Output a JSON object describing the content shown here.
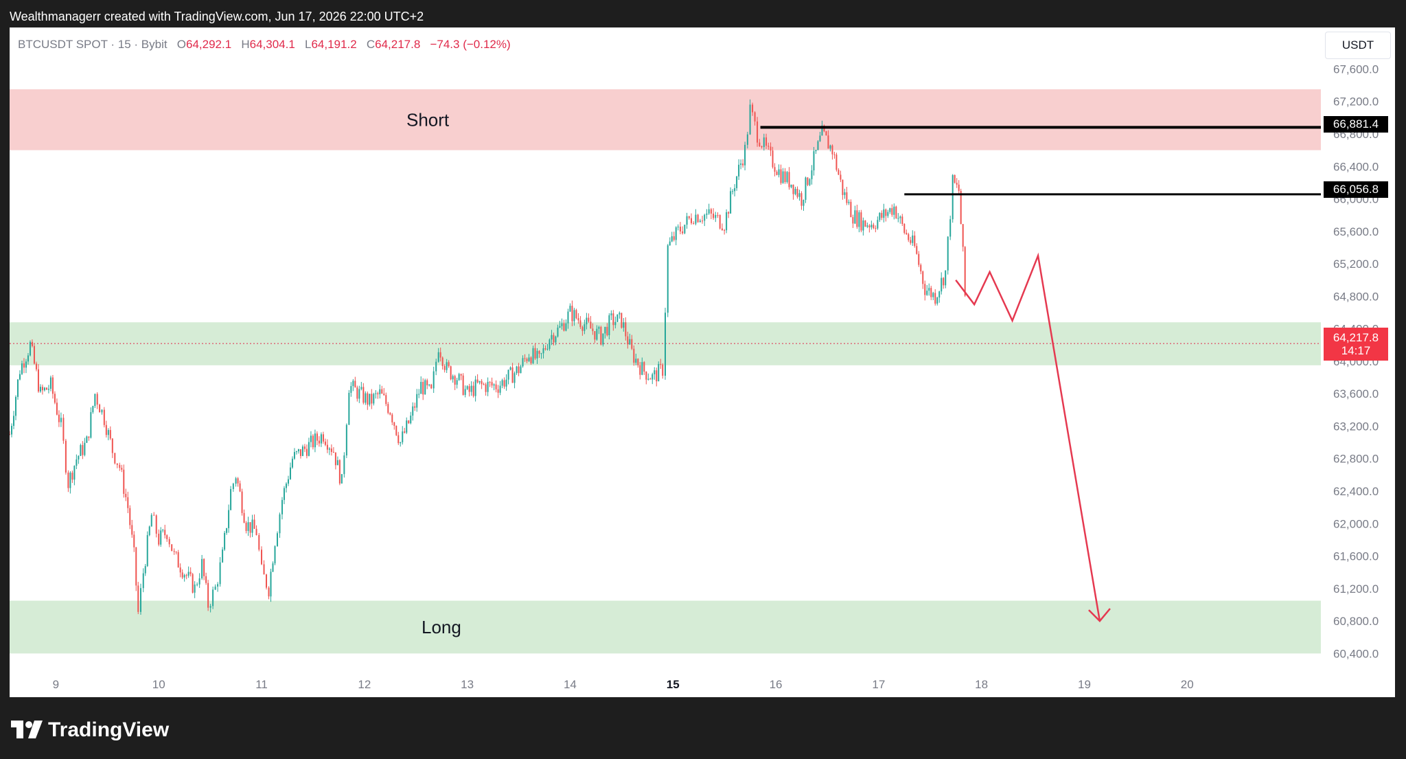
{
  "header": {
    "attribution": "Wealthmanagerr created with TradingView.com, Jun 17, 2026 22:00 UTC+2"
  },
  "symbol": {
    "name": "BTCUSDT SPOT · 15 · Bybit",
    "open_label": "O",
    "open": "64,292.1",
    "high_label": "H",
    "high": "64,304.1",
    "low_label": "L",
    "low": "64,191.2",
    "close_label": "C",
    "close": "64,217.8",
    "change": "−74.3 (−0.12%)"
  },
  "unit": "USDT",
  "price_tags": {
    "level_1": "66,881.4",
    "level_2": "66,056.8",
    "current": "64,217.8",
    "countdown": "14:17"
  },
  "footer": {
    "brand": "TradingView"
  },
  "colors": {
    "up": "#26a69a",
    "down": "#ef5350",
    "short_zone": "#f8cfcf",
    "long_zone": "#d6ecd6",
    "arrow": "#e53950",
    "tag_current": "#f23645"
  },
  "chart_data": {
    "type": "candlestick",
    "symbol": "BTCUSDT",
    "timeframe": "15",
    "exchange": "Bybit",
    "x_ticks": [
      "9",
      "10",
      "11",
      "12",
      "13",
      "14",
      "15",
      "16",
      "17",
      "18",
      "19",
      "20"
    ],
    "y_ticks": [
      67600,
      67200,
      66800,
      66400,
      66000,
      65600,
      65200,
      64800,
      64400,
      64000,
      63600,
      63200,
      62800,
      62400,
      62000,
      61600,
      61200,
      60800,
      60400
    ],
    "ylim": [
      60200,
      67900
    ],
    "xlim": [
      8.55,
      21.3
    ],
    "path_points": [
      [
        8.55,
        63.1
      ],
      [
        8.65,
        63.9
      ],
      [
        8.75,
        64.2
      ],
      [
        8.85,
        63.6
      ],
      [
        8.95,
        63.7
      ],
      [
        9.05,
        63.2
      ],
      [
        9.12,
        62.5
      ],
      [
        9.2,
        62.8
      ],
      [
        9.3,
        63.0
      ],
      [
        9.38,
        63.6
      ],
      [
        9.47,
        63.3
      ],
      [
        9.55,
        62.9
      ],
      [
        9.62,
        62.7
      ],
      [
        9.7,
        62.2
      ],
      [
        9.76,
        61.6
      ],
      [
        9.8,
        60.9
      ],
      [
        9.85,
        61.4
      ],
      [
        9.93,
        62.1
      ],
      [
        10.0,
        61.8
      ],
      [
        10.08,
        61.9
      ],
      [
        10.15,
        61.6
      ],
      [
        10.25,
        61.4
      ],
      [
        10.35,
        61.2
      ],
      [
        10.42,
        61.5
      ],
      [
        10.48,
        61.0
      ],
      [
        10.55,
        61.2
      ],
      [
        10.62,
        61.6
      ],
      [
        10.7,
        62.4
      ],
      [
        10.75,
        62.6
      ],
      [
        10.85,
        62.0
      ],
      [
        10.95,
        61.9
      ],
      [
        11.0,
        61.4
      ],
      [
        11.07,
        61.2
      ],
      [
        11.13,
        61.8
      ],
      [
        11.2,
        62.3
      ],
      [
        11.3,
        62.8
      ],
      [
        11.4,
        62.9
      ],
      [
        11.5,
        63.0
      ],
      [
        11.6,
        63.1
      ],
      [
        11.7,
        62.9
      ],
      [
        11.78,
        62.5
      ],
      [
        11.85,
        63.7
      ],
      [
        11.95,
        63.6
      ],
      [
        12.05,
        63.5
      ],
      [
        12.15,
        63.6
      ],
      [
        12.25,
        63.4
      ],
      [
        12.35,
        63.0
      ],
      [
        12.45,
        63.3
      ],
      [
        12.55,
        63.7
      ],
      [
        12.65,
        63.6
      ],
      [
        12.72,
        64.2
      ],
      [
        12.8,
        63.9
      ],
      [
        12.9,
        63.8
      ],
      [
        13.0,
        63.6
      ],
      [
        13.1,
        63.7
      ],
      [
        13.2,
        63.7
      ],
      [
        13.3,
        63.7
      ],
      [
        13.4,
        63.8
      ],
      [
        13.5,
        63.9
      ],
      [
        13.6,
        64.1
      ],
      [
        13.7,
        64.0
      ],
      [
        13.8,
        64.3
      ],
      [
        13.9,
        64.4
      ],
      [
        14.0,
        64.6
      ],
      [
        14.1,
        64.5
      ],
      [
        14.2,
        64.4
      ],
      [
        14.3,
        64.3
      ],
      [
        14.4,
        64.5
      ],
      [
        14.5,
        64.5
      ],
      [
        14.6,
        64.1
      ],
      [
        14.7,
        63.9
      ],
      [
        14.8,
        63.8
      ],
      [
        14.9,
        63.9
      ],
      [
        14.95,
        65.4
      ],
      [
        15.05,
        65.6
      ],
      [
        15.2,
        65.8
      ],
      [
        15.35,
        65.8
      ],
      [
        15.5,
        65.7
      ],
      [
        15.6,
        66.2
      ],
      [
        15.7,
        66.6
      ],
      [
        15.75,
        67.1
      ],
      [
        15.82,
        66.8
      ],
      [
        15.95,
        66.5
      ],
      [
        16.05,
        66.3
      ],
      [
        16.15,
        66.2
      ],
      [
        16.25,
        66.0
      ],
      [
        16.35,
        66.4
      ],
      [
        16.45,
        66.8
      ],
      [
        16.55,
        66.6
      ],
      [
        16.65,
        66.1
      ],
      [
        16.75,
        65.8
      ],
      [
        16.85,
        65.7
      ],
      [
        16.95,
        65.7
      ],
      [
        17.05,
        65.8
      ],
      [
        17.15,
        65.9
      ],
      [
        17.25,
        65.6
      ],
      [
        17.35,
        65.4
      ],
      [
        17.45,
        64.9
      ],
      [
        17.55,
        64.8
      ],
      [
        17.65,
        65.1
      ],
      [
        17.72,
        66.2
      ],
      [
        17.78,
        66.1
      ],
      [
        17.82,
        65.3
      ],
      [
        17.86,
        64.3
      ]
    ],
    "candle_seed": 7,
    "horizontal_levels": [
      {
        "price": 66881.4,
        "from_x": 15.85
      },
      {
        "price": 66056.8,
        "from_x": 17.25
      }
    ],
    "zones": [
      {
        "label": "Short",
        "from": 66600,
        "to": 67350,
        "color": "short_zone"
      },
      {
        "label": "",
        "from": 63950,
        "to": 64480,
        "color": "long_zone"
      },
      {
        "label": "Long",
        "from": 60400,
        "to": 61050,
        "color": "long_zone"
      }
    ],
    "current_price": 64217.8,
    "projection": [
      [
        17.75,
        65.0
      ],
      [
        17.93,
        64.7
      ],
      [
        18.08,
        65.1
      ],
      [
        18.3,
        64.5
      ],
      [
        18.55,
        65.3
      ],
      [
        19.15,
        60.8
      ]
    ],
    "grid": false,
    "legend": "none"
  }
}
